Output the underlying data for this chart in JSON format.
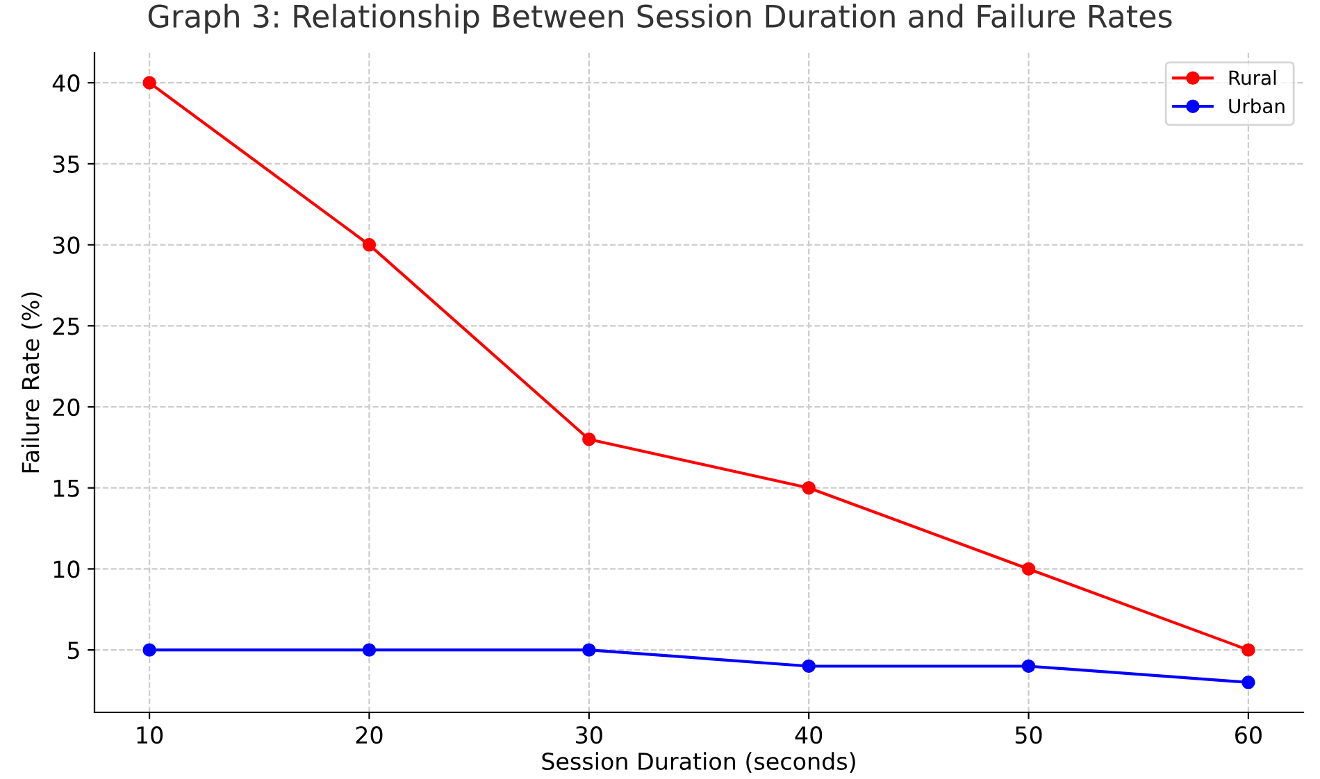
{
  "chart_data": {
    "type": "line",
    "title": "Graph 3: Relationship Between Session Duration and Failure Rates",
    "xlabel": "Session Duration (seconds)",
    "ylabel": "Failure Rate (%)",
    "x": [
      10,
      20,
      30,
      40,
      50,
      60
    ],
    "series": [
      {
        "name": "Rural",
        "color": "#ff0000",
        "values": [
          40,
          30,
          18,
          15,
          10,
          5
        ]
      },
      {
        "name": "Urban",
        "color": "#0000ff",
        "values": [
          5,
          5,
          5,
          4,
          4,
          3
        ]
      }
    ],
    "xlim": [
      7.5,
      62.5
    ],
    "ylim": [
      1.15,
      41.85
    ],
    "xticks": [
      10,
      20,
      30,
      40,
      50,
      60
    ],
    "yticks": [
      5,
      10,
      15,
      20,
      25,
      30,
      35,
      40
    ],
    "grid": true,
    "legend": "top right",
    "marker": "circle",
    "line_style": "solid"
  }
}
